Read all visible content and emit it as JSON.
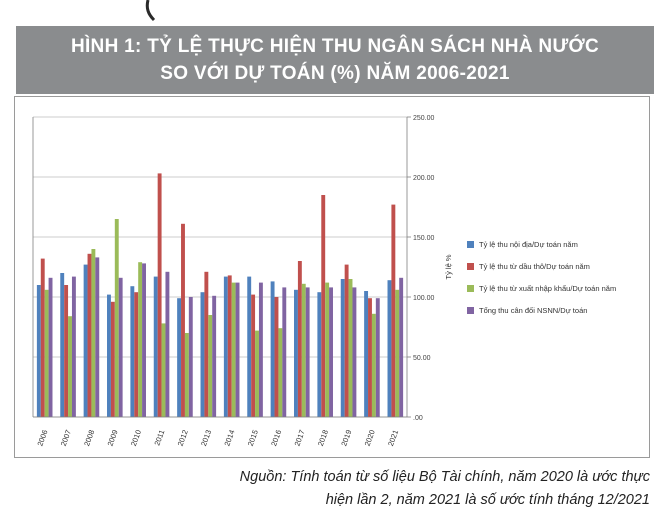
{
  "header": {
    "line1": "HÌNH 1: TỶ LỆ THỰC HIỆN THU NGÂN SÁCH NHÀ NƯỚC",
    "line2": "SO VỚI DỰ TOÁN (%) NĂM 2006-2021"
  },
  "source": {
    "line1": "Nguồn: Tính toán từ số liệu Bộ Tài chính, năm 2020 là ước thực",
    "line2": "hiện lần 2, năm 2021 là số ước tính tháng 12/2021"
  },
  "colors": {
    "header_bg": "#8a8c8e",
    "series": [
      "#4f81bd",
      "#c0504d",
      "#9bbb59",
      "#8064a2"
    ]
  },
  "chart_data": {
    "type": "bar",
    "ylabel": "Tỷ lệ %",
    "ylim": [
      0,
      250
    ],
    "yticks": [
      ".00",
      "50.00",
      "100.00",
      "150.00",
      "200.00",
      "250.00"
    ],
    "y_axis_side": "right",
    "grid": true,
    "legend_position": "right",
    "categories": [
      "2006",
      "2007",
      "2008",
      "2009",
      "2010",
      "2011",
      "2012",
      "2013",
      "2014",
      "2015",
      "2016",
      "2017",
      "2018",
      "2019",
      "2020",
      "2021"
    ],
    "series": [
      {
        "name": "Tỷ lệ thu nội địa/Dự toán năm",
        "values": [
          110,
          120,
          127,
          102,
          109,
          117,
          99,
          104,
          117,
          117,
          113,
          106,
          104,
          115,
          105,
          114
        ]
      },
      {
        "name": "Tỷ lệ thu từ dầu thô/Dự toán năm",
        "values": [
          132,
          110,
          136,
          96,
          104,
          203,
          161,
          121,
          118,
          102,
          100,
          130,
          185,
          127,
          99,
          177
        ]
      },
      {
        "name": "Tỷ lệ thu từ xuất nhập khẩu/Dự toán năm",
        "values": [
          106,
          84,
          140,
          165,
          129,
          78,
          70,
          85,
          112,
          72,
          74,
          111,
          112,
          115,
          86,
          106
        ]
      },
      {
        "name": "Tổng thu cân đối NSNN/Dự toán",
        "values": [
          116,
          117,
          133,
          116,
          128,
          121,
          100,
          101,
          112,
          112,
          108,
          108,
          108,
          108,
          99,
          116
        ]
      }
    ]
  }
}
